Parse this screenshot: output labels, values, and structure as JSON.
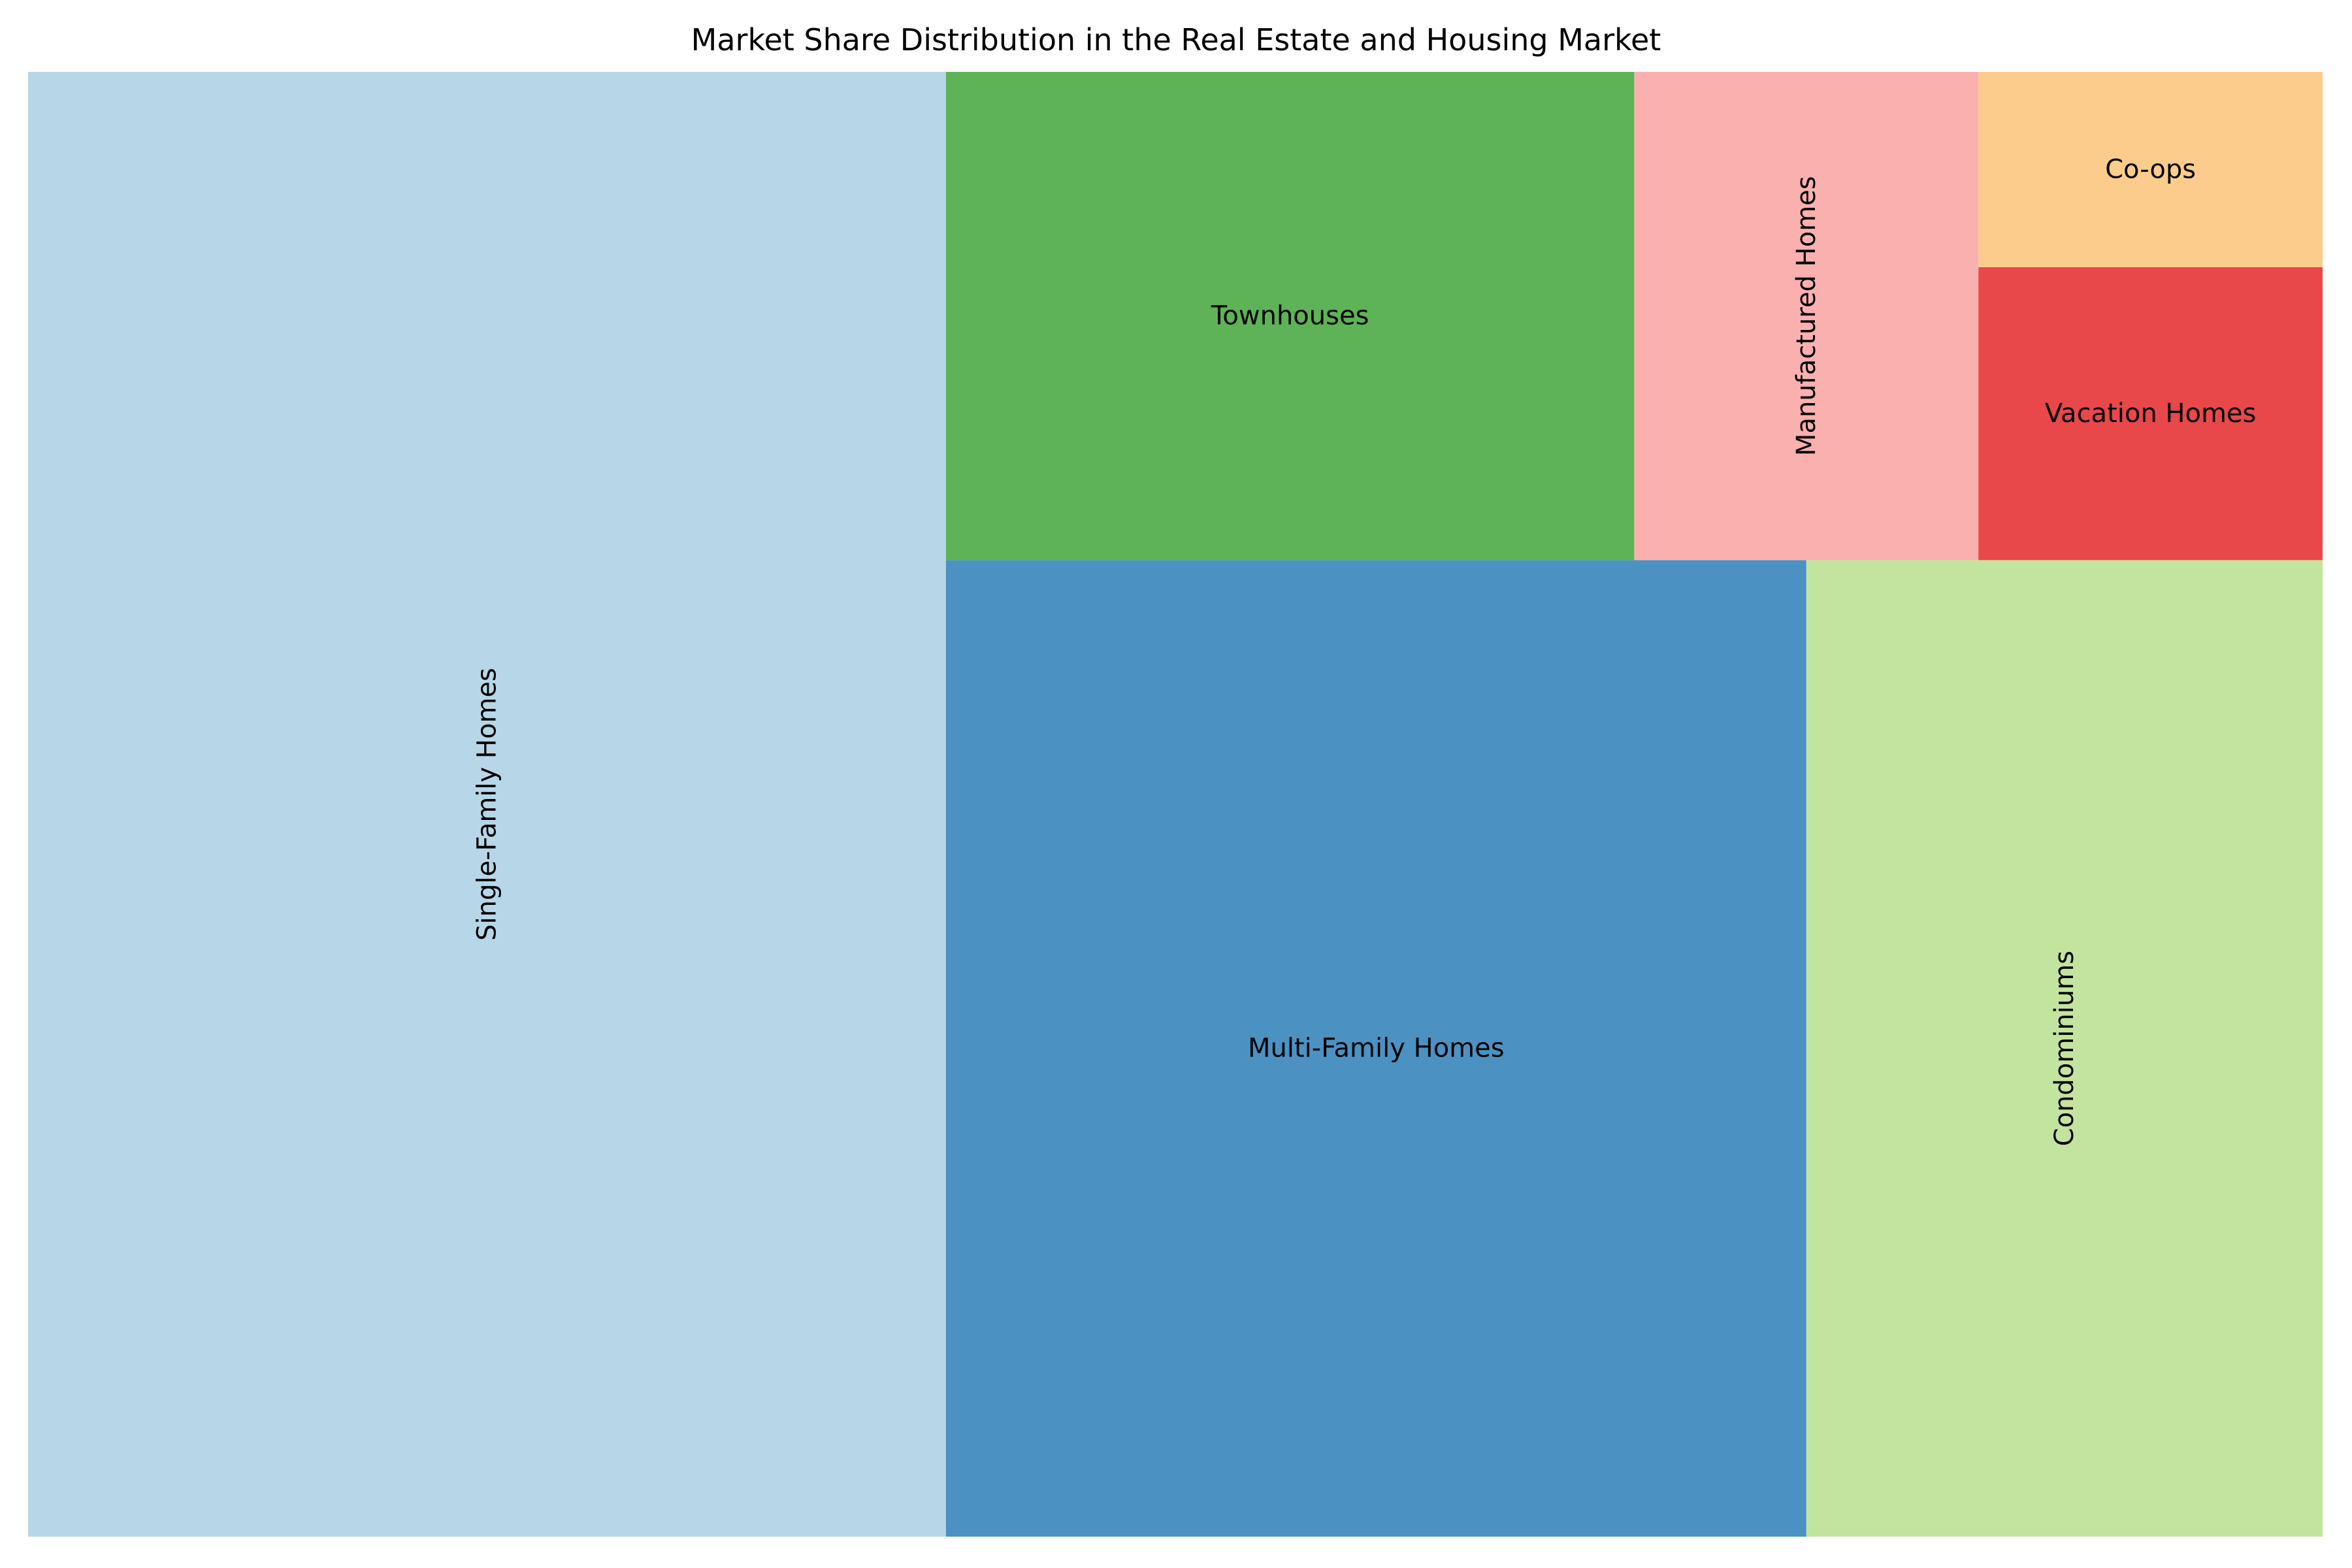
{
  "chart_data": {
    "type": "treemap",
    "title": "Market Share Distribution in the Real Estate and Housing Market",
    "legend": "none",
    "grid": false,
    "items": [
      {
        "label": "Single-Family Homes",
        "value": 40,
        "color": "#b7d7e8"
      },
      {
        "label": "Multi-Family Homes",
        "value": 25,
        "color": "#4b92c3"
      },
      {
        "label": "Condominiums",
        "value": 15,
        "color": "#c3e49e"
      },
      {
        "label": "Townhouses",
        "value": 10,
        "color": "#5db356"
      },
      {
        "label": "Manufactured Homes",
        "value": 5,
        "color": "#fbb0b0"
      },
      {
        "label": "Vacation Homes",
        "value": 3,
        "color": "#e8484a"
      },
      {
        "label": "Co-ops",
        "value": 2,
        "color": "#fccc8c"
      }
    ]
  }
}
